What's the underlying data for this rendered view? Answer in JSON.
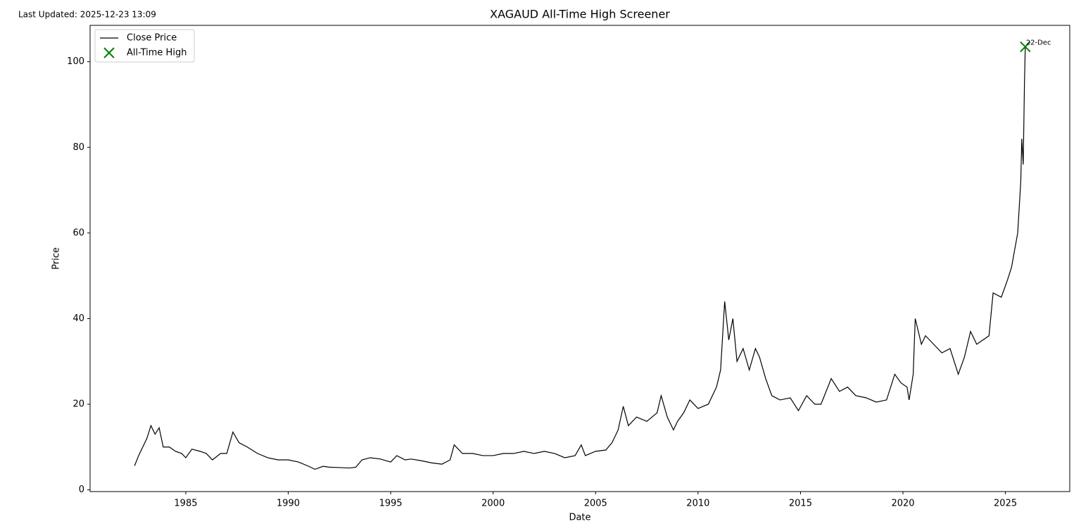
{
  "chart_data": {
    "type": "line",
    "title": "XAGAUD All-Time High Screener",
    "subtitle": "Last Updated: 2025-12-23 13:09",
    "x_label": "Date",
    "y_label": "Price",
    "xlim": [
      1980.33,
      2028.14
    ],
    "ylim": [
      -0.4,
      108.5
    ],
    "xticks": [
      1985,
      1990,
      1995,
      2000,
      2005,
      2010,
      2015,
      2020,
      2025
    ],
    "yticks": [
      0,
      20,
      40,
      60,
      80,
      100
    ],
    "grid": false,
    "legend": "upper left",
    "series": [
      {
        "name": "Close Price",
        "color": "#000000",
        "kind": "line",
        "x": [
          1982.5,
          1982.7,
          1982.9,
          1983.1,
          1983.3,
          1983.5,
          1983.7,
          1983.9,
          1984.2,
          1984.5,
          1984.8,
          1985.0,
          1985.3,
          1985.7,
          1986.0,
          1986.3,
          1986.7,
          1987.0,
          1987.3,
          1987.6,
          1988.0,
          1988.5,
          1989.0,
          1989.5,
          1990.0,
          1990.5,
          1991.0,
          1991.3,
          1991.7,
          1992.0,
          1992.5,
          1993.0,
          1993.3,
          1993.6,
          1994.0,
          1994.5,
          1995.0,
          1995.3,
          1995.7,
          1996.0,
          1996.5,
          1997.0,
          1997.5,
          1997.9,
          1998.1,
          1998.5,
          1999.0,
          1999.5,
          2000.0,
          2000.5,
          2001.0,
          2001.5,
          2002.0,
          2002.5,
          2003.0,
          2003.5,
          2004.0,
          2004.3,
          2004.5,
          2005.0,
          2005.5,
          2005.8,
          2006.1,
          2006.35,
          2006.6,
          2007.0,
          2007.5,
          2008.0,
          2008.2,
          2008.5,
          2008.8,
          2009.0,
          2009.3,
          2009.6,
          2010.0,
          2010.5,
          2010.9,
          2011.1,
          2011.3,
          2011.5,
          2011.7,
          2011.9,
          2012.2,
          2012.5,
          2012.8,
          2013.0,
          2013.3,
          2013.6,
          2014.0,
          2014.5,
          2014.9,
          2015.3,
          2015.7,
          2016.0,
          2016.5,
          2016.9,
          2017.3,
          2017.7,
          2018.2,
          2018.7,
          2019.2,
          2019.6,
          2019.9,
          2020.2,
          2020.3,
          2020.5,
          2020.6,
          2020.9,
          2021.1,
          2021.5,
          2021.9,
          2022.3,
          2022.7,
          2023.0,
          2023.3,
          2023.6,
          2023.9,
          2024.2,
          2024.4,
          2024.8,
          2025.1,
          2025.3,
          2025.6,
          2025.75,
          2025.8,
          2025.87,
          2025.93,
          2025.97
        ],
        "values": [
          5.6,
          8,
          10,
          12,
          15,
          13,
          14.5,
          10,
          10,
          9,
          8.5,
          7.5,
          9.5,
          9,
          8.5,
          7,
          8.5,
          8.5,
          13.5,
          11,
          10,
          8.5,
          7.5,
          7,
          7,
          6.5,
          5.5,
          4.8,
          5.5,
          5.3,
          5.2,
          5.1,
          5.3,
          7,
          7.5,
          7.2,
          6.5,
          8,
          7,
          7.2,
          6.8,
          6.3,
          6,
          7,
          10.5,
          8.5,
          8.5,
          8,
          8,
          8.5,
          8.5,
          9,
          8.5,
          9,
          8.5,
          7.5,
          8,
          10.5,
          8,
          9,
          9.3,
          11,
          14,
          19.5,
          15,
          17,
          16,
          18,
          22,
          17,
          14,
          16,
          18,
          21,
          19,
          20,
          24,
          28,
          44,
          35,
          40,
          30,
          33,
          28,
          33,
          31,
          26,
          22,
          21,
          21.5,
          18.5,
          22,
          20,
          20,
          26,
          23,
          24,
          22,
          21.5,
          20.5,
          21,
          27,
          25,
          24,
          21,
          27,
          40,
          34,
          36,
          34,
          32,
          33,
          27,
          31,
          37,
          34,
          35,
          36,
          46,
          45,
          49,
          52,
          60,
          72,
          82,
          76,
          95,
          103.5
        ]
      },
      {
        "name": "All-Time High",
        "color": "#008000",
        "kind": "marker",
        "x": [
          2025.97
        ],
        "values": [
          103.5
        ],
        "labels": [
          "22-Dec"
        ]
      }
    ]
  }
}
